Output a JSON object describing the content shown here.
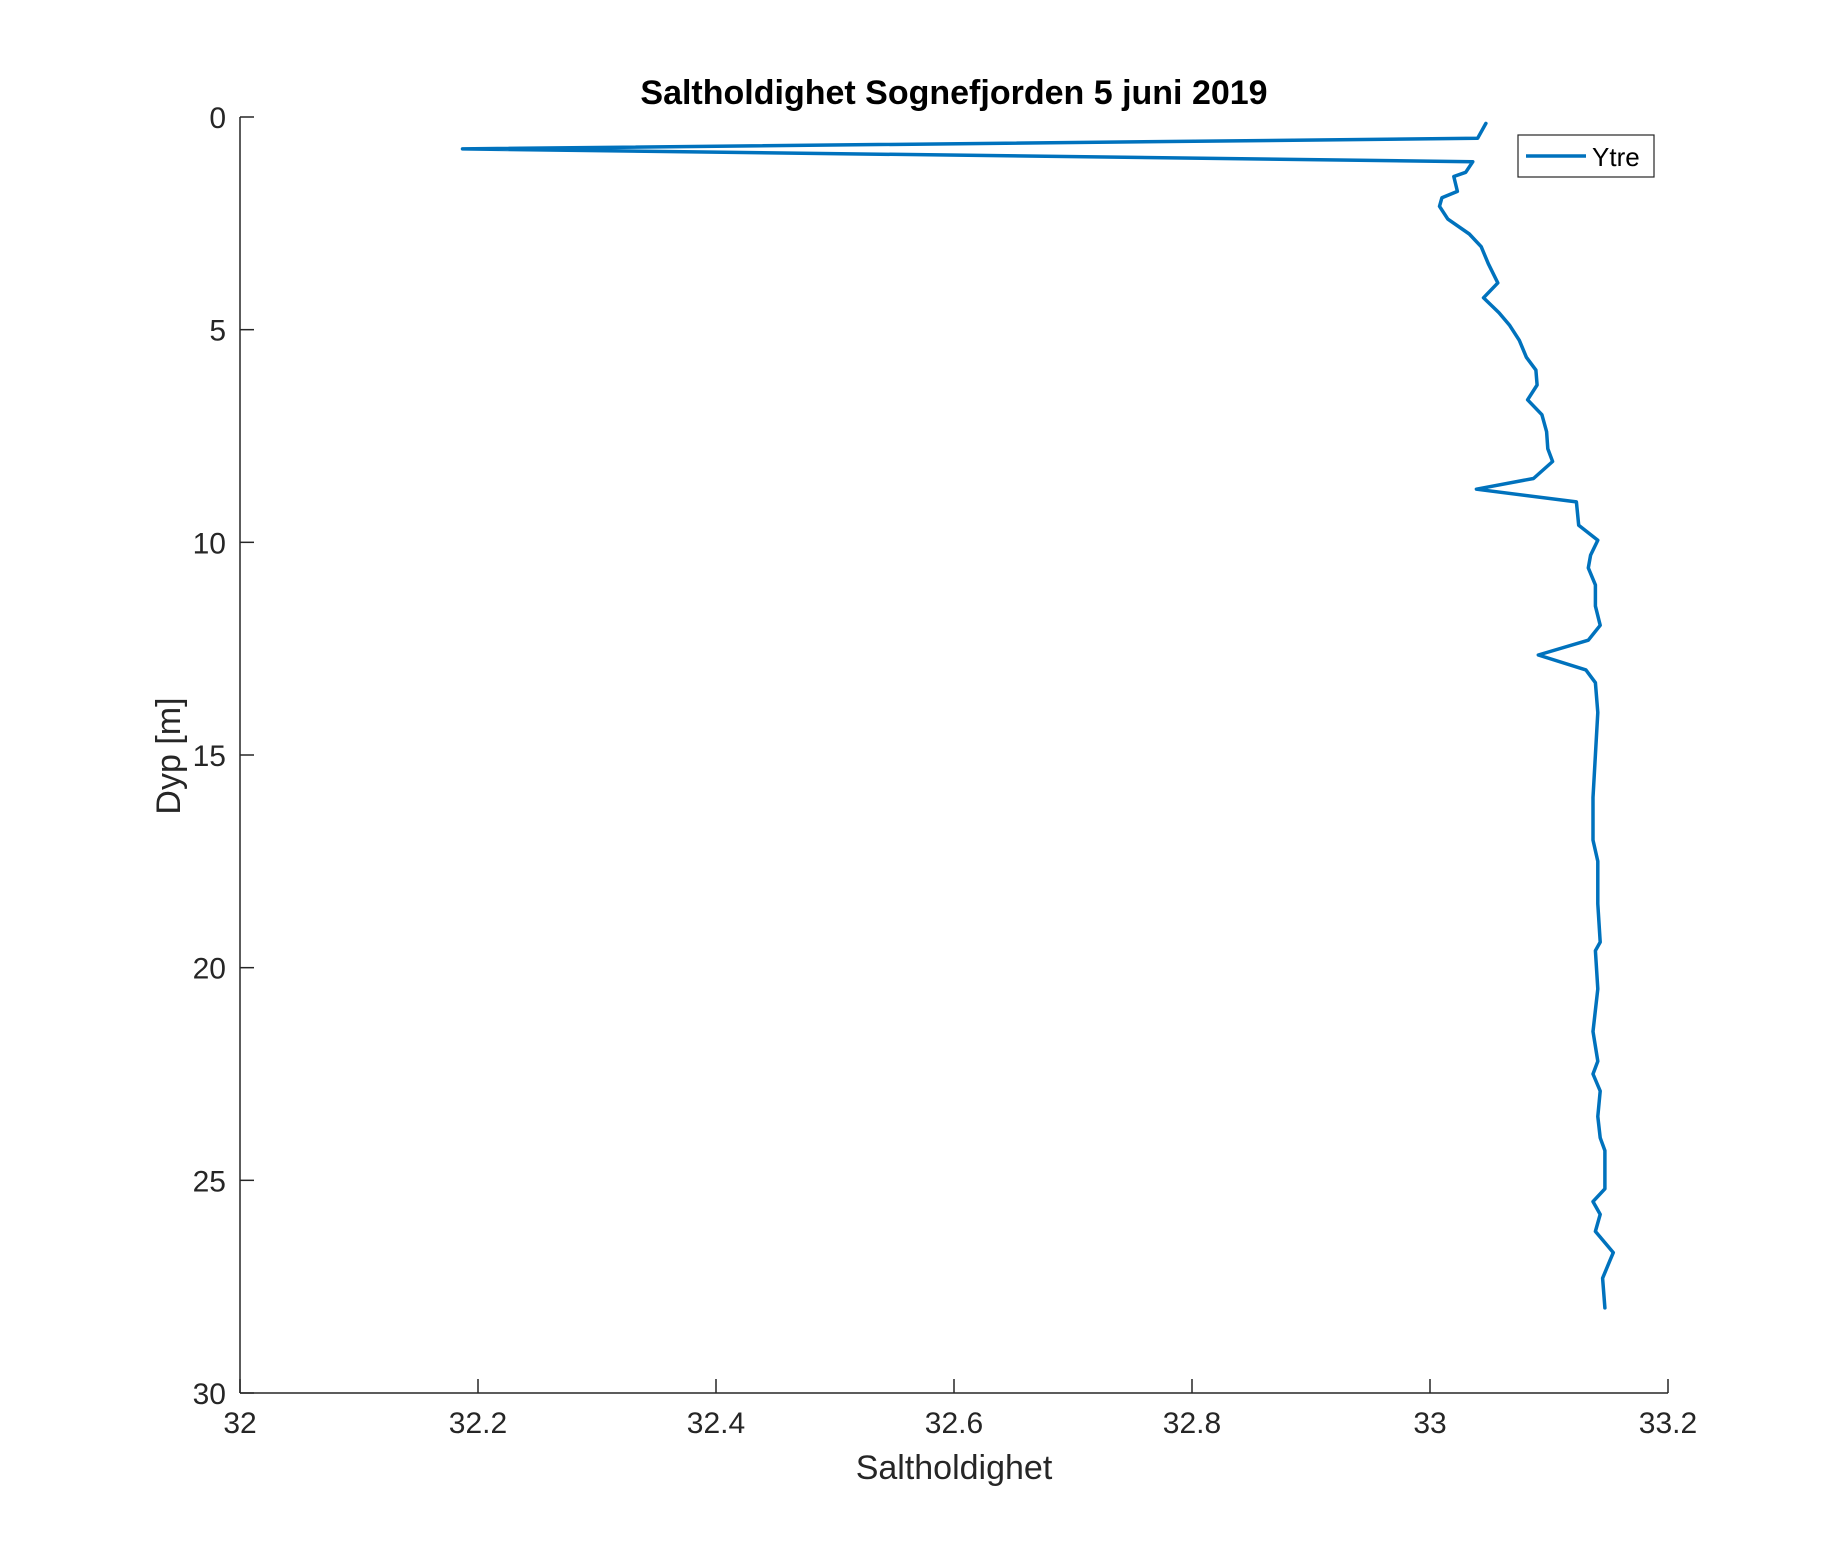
{
  "chart_data": {
    "type": "line",
    "title": "Saltholdighet Sognefjorden 5 juni 2019",
    "xlabel": "Saltholdighet",
    "ylabel": "Dyp [m]",
    "xlim": [
      32,
      33.2
    ],
    "ylim": [
      0,
      30
    ],
    "y_reversed": true,
    "grid": false,
    "legend_position": "top-right",
    "x_ticks": [
      32,
      32.2,
      32.4,
      32.6,
      32.8,
      33,
      33.2
    ],
    "x_tick_labels": [
      "32",
      "32.2",
      "32.4",
      "32.6",
      "32.8",
      "33",
      "33.2"
    ],
    "y_ticks": [
      0,
      5,
      10,
      15,
      20,
      25,
      30
    ],
    "y_tick_labels": [
      "0",
      "5",
      "10",
      "15",
      "20",
      "25",
      "30"
    ],
    "series": [
      {
        "name": "Ytre",
        "color": "#0072BD",
        "points": [
          [
            33.047,
            0.15
          ],
          [
            33.04,
            0.5
          ],
          [
            32.187,
            0.75
          ],
          [
            33.036,
            1.05
          ],
          [
            33.03,
            1.3
          ],
          [
            33.02,
            1.4
          ],
          [
            33.023,
            1.75
          ],
          [
            33.01,
            1.9
          ],
          [
            33.008,
            2.1
          ],
          [
            33.015,
            2.4
          ],
          [
            33.033,
            2.75
          ],
          [
            33.043,
            3.05
          ],
          [
            33.049,
            3.45
          ],
          [
            33.057,
            3.9
          ],
          [
            33.045,
            4.25
          ],
          [
            33.058,
            4.6
          ],
          [
            33.067,
            4.9
          ],
          [
            33.075,
            5.25
          ],
          [
            33.081,
            5.65
          ],
          [
            33.089,
            5.95
          ],
          [
            33.09,
            6.3
          ],
          [
            33.082,
            6.65
          ],
          [
            33.094,
            7.0
          ],
          [
            33.098,
            7.4
          ],
          [
            33.099,
            7.8
          ],
          [
            33.103,
            8.1
          ],
          [
            33.087,
            8.5
          ],
          [
            33.039,
            8.75
          ],
          [
            33.123,
            9.05
          ],
          [
            33.125,
            9.6
          ],
          [
            33.141,
            9.95
          ],
          [
            33.135,
            10.3
          ],
          [
            33.133,
            10.6
          ],
          [
            33.139,
            11.0
          ],
          [
            33.139,
            11.5
          ],
          [
            33.143,
            11.95
          ],
          [
            33.133,
            12.3
          ],
          [
            33.091,
            12.65
          ],
          [
            33.131,
            13.0
          ],
          [
            33.139,
            13.3
          ],
          [
            33.141,
            14.0
          ],
          [
            33.139,
            15.0
          ],
          [
            33.137,
            16.0
          ],
          [
            33.137,
            17.0
          ],
          [
            33.141,
            17.5
          ],
          [
            33.141,
            18.5
          ],
          [
            33.143,
            19.4
          ],
          [
            33.139,
            19.6
          ],
          [
            33.141,
            20.5
          ],
          [
            33.137,
            21.5
          ],
          [
            33.141,
            22.2
          ],
          [
            33.137,
            22.5
          ],
          [
            33.143,
            22.9
          ],
          [
            33.141,
            23.5
          ],
          [
            33.143,
            24.0
          ],
          [
            33.147,
            24.3
          ],
          [
            33.147,
            25.2
          ],
          [
            33.137,
            25.5
          ],
          [
            33.143,
            25.8
          ],
          [
            33.139,
            26.2
          ],
          [
            33.154,
            26.7
          ],
          [
            33.151,
            26.9
          ],
          [
            33.145,
            27.3
          ],
          [
            33.147,
            28.0
          ]
        ]
      }
    ]
  }
}
